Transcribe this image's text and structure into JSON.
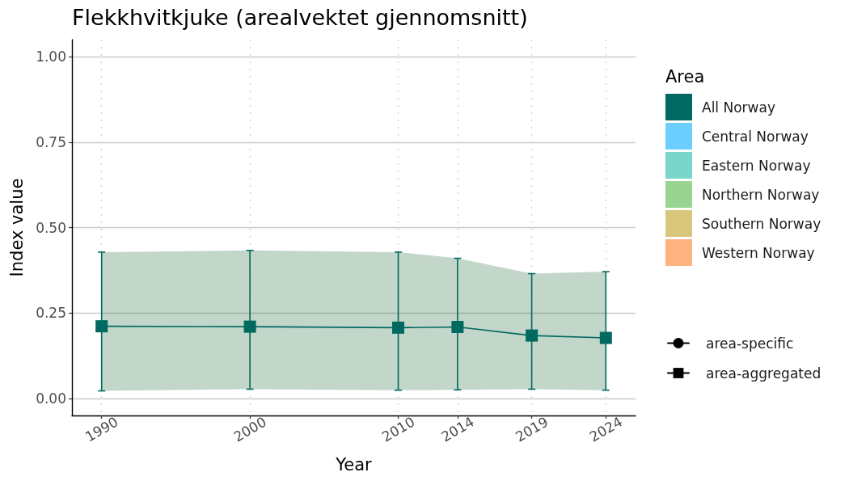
{
  "chart_data": {
    "type": "line",
    "title": "Flekkhvitkjuke (arealvektet gjennomsnitt)",
    "xlabel": "Year",
    "ylabel": "Index value",
    "legend_title": "Area",
    "x": [
      1990,
      2000,
      2010,
      2014,
      2019,
      2024
    ],
    "xlim": [
      1988,
      2026
    ],
    "xticks": [
      1990,
      2000,
      2010,
      2014,
      2019,
      2024
    ],
    "ylim": [
      -0.05,
      1.05
    ],
    "yticks": [
      {
        "value": 0,
        "label": "0.00"
      },
      {
        "value": 0.25,
        "label": "0.25"
      },
      {
        "value": 0.5,
        "label": "0.50"
      },
      {
        "value": 0.75,
        "label": "0.75"
      },
      {
        "value": 1,
        "label": "1.00"
      }
    ],
    "grid": true,
    "legend": "right",
    "marker": "square",
    "series": [
      {
        "name": "All Norway",
        "color": "#006960",
        "values": [
          0.211,
          0.21,
          0.207,
          0.209,
          0.184,
          0.177
        ],
        "lower": [
          0.022,
          0.027,
          0.024,
          0.025,
          0.027,
          0.024
        ],
        "upper": [
          0.428,
          0.433,
          0.428,
          0.41,
          0.365,
          0.371
        ],
        "errors": [
          [
            0.022,
            0.428
          ],
          [
            0.027,
            0.433
          ],
          [
            0.024,
            0.428
          ],
          [
            0.025,
            0.41
          ],
          [
            0.027,
            0.365
          ],
          [
            0.024,
            0.371
          ]
        ]
      },
      {
        "name": "Central Norway",
        "color": "#6dcfff",
        "values": [
          null,
          null,
          null,
          null,
          null,
          null
        ]
      },
      {
        "name": "Eastern Norway",
        "color": "#78d6cb",
        "values": [
          null,
          null,
          null,
          null,
          null,
          null
        ]
      },
      {
        "name": "Northern Norway",
        "color": "#9ad492",
        "values": [
          null,
          null,
          null,
          null,
          null,
          null
        ]
      },
      {
        "name": "Southern Norway",
        "color": "#d8c77a",
        "values": [
          null,
          null,
          null,
          null,
          null,
          null
        ]
      },
      {
        "name": "Western Norway",
        "color": "#fdb280",
        "values": [
          null,
          null,
          null,
          null,
          null,
          null
        ]
      },
      {
        "name": "area-specific",
        "color": "#000000",
        "marker": "circle",
        "values": [
          null,
          null,
          null,
          null,
          null,
          null
        ]
      },
      {
        "name": "area-aggregated",
        "color": "#000000",
        "marker": "square",
        "values": [
          null,
          null,
          null,
          null,
          null,
          null
        ]
      }
    ]
  }
}
